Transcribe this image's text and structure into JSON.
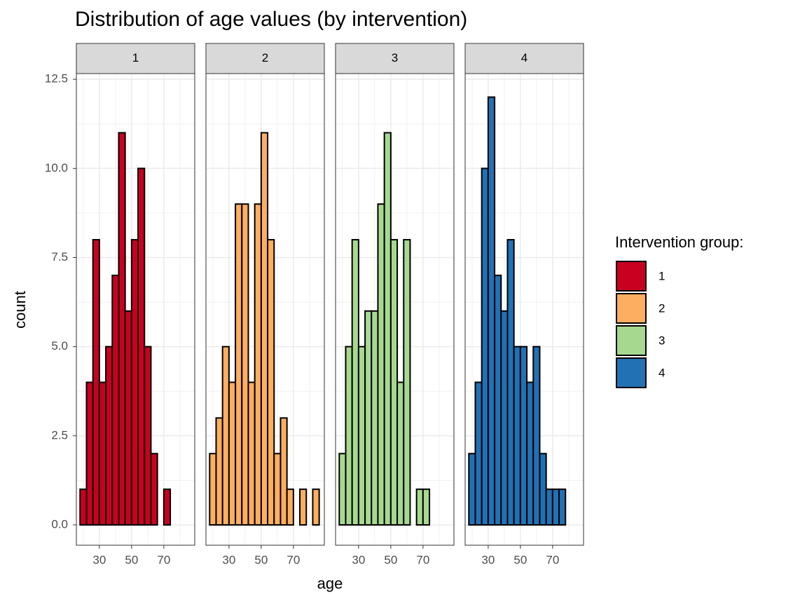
{
  "chart_data": {
    "type": "histogram",
    "title": "Distribution of age values (by intervention)",
    "x_label": "age",
    "y_label": "count",
    "legend_title": "Intervention group:",
    "legend_position": "right",
    "bins": [
      18,
      22,
      26,
      30,
      34,
      38,
      42,
      46,
      50,
      54,
      58,
      62,
      66,
      70,
      74,
      78,
      82,
      86
    ],
    "series": [
      {
        "name": "1",
        "color": "#ca0020",
        "values": [
          1,
          4,
          8,
          4,
          5,
          7,
          11,
          6,
          8,
          10,
          5,
          2,
          0,
          1,
          0,
          0,
          0
        ]
      },
      {
        "name": "2",
        "color": "#fdae61",
        "values": [
          2,
          3,
          5,
          4,
          9,
          9,
          4,
          9,
          11,
          8,
          2,
          3,
          1,
          0,
          1,
          0,
          1
        ]
      },
      {
        "name": "3",
        "color": "#a6d98f",
        "values": [
          2,
          5,
          8,
          5,
          6,
          6,
          9,
          11,
          8,
          4,
          8,
          0,
          1,
          1,
          0,
          0,
          0
        ]
      },
      {
        "name": "4",
        "color": "#2171b5",
        "values": [
          2,
          4,
          10,
          12,
          7,
          6,
          8,
          5,
          5,
          4,
          5,
          2,
          1,
          1,
          1,
          0,
          0
        ]
      }
    ],
    "xlim": [
      15.7,
      89.2
    ],
    "xticks": [
      30,
      50,
      70
    ],
    "ylim": [
      -0.57,
      12.66
    ],
    "yticks": [
      {
        "value": 0,
        "label": "0.0"
      },
      2.5,
      {
        "value": 5,
        "label": "5.0"
      },
      7.5,
      {
        "value": 10,
        "label": "10.0"
      },
      12.5
    ],
    "grid": true
  }
}
